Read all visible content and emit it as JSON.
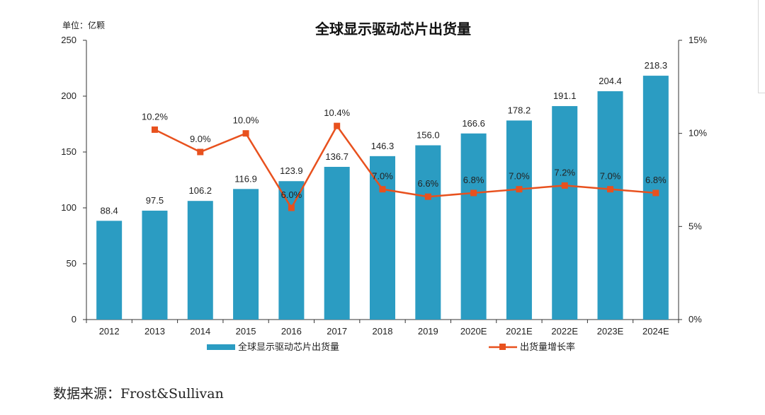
{
  "source_text": "数据来源：Frost&Sullivan",
  "chart_data": {
    "type": "bar",
    "title": "全球显示驱动芯片出货量",
    "unit_label": "单位：亿颗",
    "categories": [
      "2012",
      "2013",
      "2014",
      "2015",
      "2016",
      "2017",
      "2018",
      "2019",
      "2020E",
      "2021E",
      "2022E",
      "2023E",
      "2024E"
    ],
    "series": [
      {
        "name": "全球显示驱动芯片出货量",
        "type": "bar",
        "axis": "left",
        "color": "#2b9cc2",
        "values": [
          88.4,
          97.5,
          106.2,
          116.9,
          123.9,
          136.7,
          146.3,
          156.0,
          166.6,
          178.2,
          191.1,
          204.4,
          218.3
        ],
        "labels": [
          "88.4",
          "97.5",
          "106.2",
          "116.9",
          "123.9",
          "136.7",
          "146.3",
          "156.0",
          "166.6",
          "178.2",
          "191.1",
          "204.4",
          "218.3"
        ]
      },
      {
        "name": "出货量增长率",
        "type": "line",
        "axis": "right",
        "color": "#e8511e",
        "values": [
          null,
          10.2,
          9.0,
          10.0,
          6.0,
          10.4,
          7.0,
          6.6,
          6.8,
          7.0,
          7.2,
          7.0,
          6.8
        ],
        "labels": [
          "",
          "10.2%",
          "9.0%",
          "10.0%",
          "6.0%",
          "10.4%",
          "7.0%",
          "6.6%",
          "6.8%",
          "7.0%",
          "7.2%",
          "7.0%",
          "6.8%"
        ]
      }
    ],
    "y_left": {
      "min": 0,
      "max": 250,
      "ticks": [
        "0",
        "50",
        "100",
        "150",
        "200",
        "250"
      ]
    },
    "y_right": {
      "min": 0,
      "max": 15,
      "ticks": [
        "0%",
        "5%",
        "10%",
        "15%"
      ]
    },
    "grid": false,
    "legend_position": "bottom"
  }
}
